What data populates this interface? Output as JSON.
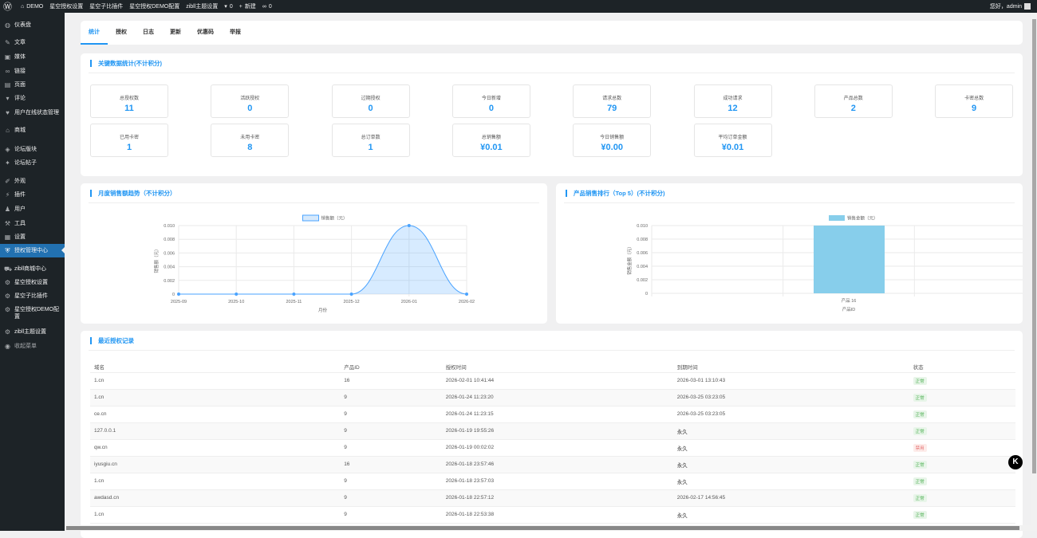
{
  "adminbar": {
    "items": [
      {
        "icon": "wordpress-icon",
        "label": ""
      },
      {
        "icon": "home-icon",
        "label": "DEMO"
      },
      {
        "label": "星空授权设置"
      },
      {
        "label": "星空子比插件"
      },
      {
        "label": "星空授权DEMO配置"
      },
      {
        "label": "zibll主题设置"
      },
      {
        "icon": "comment-icon",
        "label": "0"
      },
      {
        "icon": "plus-icon",
        "label": "新建"
      },
      {
        "icon": "link-icon",
        "label": "0"
      }
    ],
    "greeting": "您好，admin"
  },
  "sidebar": {
    "items": [
      {
        "label": "仪表盘",
        "icon": "dashboard-icon",
        "g": "◍"
      },
      {
        "label": "文章",
        "icon": "pin-icon",
        "g": "✎"
      },
      {
        "label": "媒体",
        "icon": "media-icon",
        "g": "▣"
      },
      {
        "label": "链接",
        "icon": "link-icon",
        "g": "∞"
      },
      {
        "label": "页面",
        "icon": "page-icon",
        "g": "▤"
      },
      {
        "label": "评论",
        "icon": "comment-icon",
        "g": "▾"
      },
      {
        "label": "用户在线状态管理",
        "icon": "heart-icon",
        "g": "♥"
      },
      {
        "label": "商城",
        "icon": "store-icon",
        "g": "⌂"
      },
      {
        "label": "论坛版块",
        "icon": "forum-icon",
        "g": "◈"
      },
      {
        "label": "论坛帖子",
        "icon": "post-icon",
        "g": "✦"
      },
      {
        "label": "外观",
        "icon": "appearance-icon",
        "g": "✐"
      },
      {
        "label": "插件",
        "icon": "plugin-icon",
        "g": "⚡"
      },
      {
        "label": "用户",
        "icon": "user-icon",
        "g": "♟"
      },
      {
        "label": "工具",
        "icon": "wrench-icon",
        "g": "⚒"
      },
      {
        "label": "设置",
        "icon": "settings-icon",
        "g": "▦"
      },
      {
        "label": "授权管理中心",
        "icon": "shield-icon",
        "g": "⛨"
      },
      {
        "label": "zibll商城中心",
        "icon": "cart-icon",
        "g": "⛟"
      },
      {
        "label": "星空授权设置",
        "icon": "gear-icon",
        "g": "⚙"
      },
      {
        "label": "星空子比插件",
        "icon": "gear-icon",
        "g": "⚙"
      },
      {
        "label": "星空授权DEMO配置",
        "icon": "gear-icon",
        "g": "⚙"
      },
      {
        "label": "zibll主题设置",
        "icon": "gear-icon",
        "g": "⚙"
      },
      {
        "label": "收起菜单",
        "icon": "collapse-icon",
        "g": "◉"
      }
    ],
    "active": "授权管理中心"
  },
  "tabs": [
    "统计",
    "授权",
    "日志",
    "更新",
    "优惠码",
    "举报"
  ],
  "stats": {
    "title": "关键数据统计(不计积分)",
    "items": [
      {
        "label": "总授权数",
        "value": "11"
      },
      {
        "label": "活跃授权",
        "value": "0"
      },
      {
        "label": "过期授权",
        "value": "0"
      },
      {
        "label": "今日新增",
        "value": "0"
      },
      {
        "label": "请求总数",
        "value": "79"
      },
      {
        "label": "成功请求",
        "value": "12"
      },
      {
        "label": "产品总数",
        "value": "2"
      },
      {
        "label": "卡密总数",
        "value": "9"
      },
      {
        "label": "已用卡密",
        "value": "1"
      },
      {
        "label": "未用卡密",
        "value": "8"
      },
      {
        "label": "总订单数",
        "value": "1"
      },
      {
        "label": "总销售额",
        "value": "¥0.01"
      },
      {
        "label": "今日销售额",
        "value": "¥0.00"
      },
      {
        "label": "平均订单金额",
        "value": "¥0.01"
      }
    ]
  },
  "chart_data": [
    {
      "type": "area",
      "title": "月度销售额趋势（不计积分）",
      "categories": [
        "2025-09",
        "2025-10",
        "2025-11",
        "2025-12",
        "2026-01",
        "2026-02"
      ],
      "series": [
        {
          "name": "销售额（元）",
          "values": [
            0,
            0,
            0,
            0,
            0.01,
            0
          ]
        }
      ],
      "xlabel": "月份",
      "ylabel": "销售额（元）",
      "ylim": [
        0,
        0.01
      ],
      "yticks": [
        "0",
        "0.002",
        "0.004",
        "0.006",
        "0.008",
        "0.010"
      ],
      "color": "#4aa3ff",
      "grid": true,
      "legend": "top"
    },
    {
      "type": "bar",
      "title": "产品销售排行（Top 5）(不计积分)",
      "categories": [
        "产品 16"
      ],
      "series": [
        {
          "name": "销售金额（元）",
          "values": [
            0.01
          ]
        }
      ],
      "xlabel": "产品ID",
      "ylabel": "销售金额（元）",
      "ylim": [
        0,
        0.01
      ],
      "yticks": [
        "0",
        "0.002",
        "0.004",
        "0.006",
        "0.008",
        "0.010"
      ],
      "color": "#87ceeb",
      "grid": true,
      "legend": "top"
    }
  ],
  "records": {
    "title": "最近授权记录",
    "columns": [
      "域名",
      "产品ID",
      "授权时间",
      "到期时间",
      "状态"
    ],
    "rows": [
      [
        "1.cn",
        "16",
        "2026-02-01 10:41:44",
        "2026-03-01 13:10:43",
        "正常"
      ],
      [
        "1.cn",
        "9",
        "2026-01-24 11:23:20",
        "2026-03-25 03:23:05",
        "正常"
      ],
      [
        "ce.cn",
        "9",
        "2026-01-24 11:23:15",
        "2026-03-25 03:23:05",
        "正常"
      ],
      [
        "127.0.0.1",
        "9",
        "2026-01-19 19:55:26",
        "永久",
        "正常"
      ],
      [
        "qw.cn",
        "9",
        "2026-01-19 00:02:02",
        "永久",
        "禁用"
      ],
      [
        "iyusgiu.cn",
        "16",
        "2026-01-18 23:57:46",
        "永久",
        "正常"
      ],
      [
        "1.cn",
        "9",
        "2026-01-18 23:57:03",
        "永久",
        "正常"
      ],
      [
        "awdasd.cn",
        "9",
        "2026-01-18 22:57:12",
        "2026-02-17 14:56:45",
        "正常"
      ],
      [
        "1.cn",
        "9",
        "2026-01-18 22:53:38",
        "永久",
        "正常"
      ]
    ]
  },
  "float_button": "K"
}
